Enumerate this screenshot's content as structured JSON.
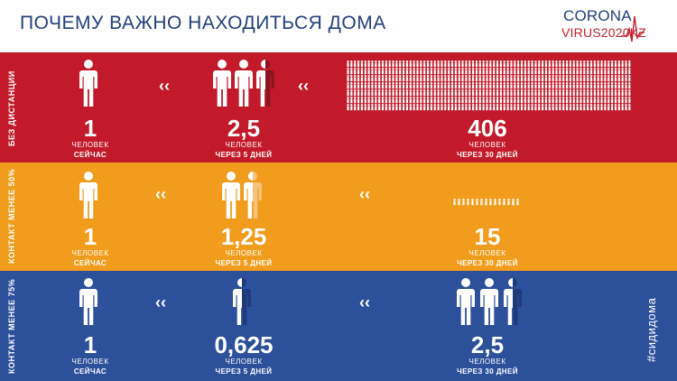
{
  "header": {
    "title": "ПОЧЕМУ ВАЖНО НАХОДИТЬСЯ ДОМА",
    "logo_top": "CORONA",
    "logo_bottom": "VIRUS2020KZ"
  },
  "rows": [
    {
      "label": "БЕЗ ДИСТАНЦИИ",
      "color": "#c21a2a",
      "cols": [
        {
          "number": "1",
          "unit": "ЧЕЛОВЕК",
          "when": "СЕЙЧАС"
        },
        {
          "number": "2,5",
          "unit": "ЧЕЛОВЕК",
          "when": "ЧЕРЕЗ 5 ДНЕЙ"
        },
        {
          "number": "406",
          "unit": "ЧЕЛОВЕК",
          "when": "ЧЕРЕЗ 30 ДНЕЙ"
        }
      ]
    },
    {
      "label": "КОНТАКТ МЕНЕЕ 50%",
      "color": "#f19c1c",
      "cols": [
        {
          "number": "1",
          "unit": "ЧЕЛОВЕК",
          "when": "СЕЙЧАС"
        },
        {
          "number": "1,25",
          "unit": "ЧЕЛОВЕК",
          "when": "ЧЕРЕЗ 5 ДНЕЙ"
        },
        {
          "number": "15",
          "unit": "ЧЕЛОВЕК",
          "when": "ЧЕРЕЗ 30 ДНЕЙ"
        }
      ]
    },
    {
      "label": "КОНТАКТ МЕНЕЕ 75%",
      "color": "#2c509a",
      "cols": [
        {
          "number": "1",
          "unit": "ЧЕЛОВЕК",
          "when": "СЕЙЧАС"
        },
        {
          "number": "0,625",
          "unit": "ЧЕЛОВЕК",
          "when": "ЧЕРЕЗ 5 ДНЕЙ"
        },
        {
          "number": "2,5",
          "unit": "ЧЕЛОВЕК",
          "when": "ЧЕРЕЗ 30 ДНЕЙ"
        }
      ]
    }
  ],
  "hashtag": "#сидидома",
  "icons": {
    "person": "person-icon",
    "arrow": "chevron-left-icon"
  }
}
